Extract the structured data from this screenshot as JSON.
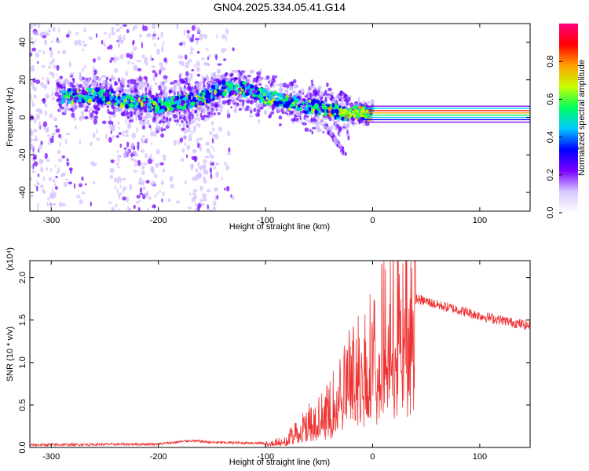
{
  "title": "GN04.2025.334.05.41.G14",
  "chart_data": [
    {
      "type": "heatmap",
      "xlabel": "Height of straight line (km)",
      "ylabel": "Frequency (Hz)",
      "xlim": [
        -320,
        147
      ],
      "ylim": [
        -50,
        50
      ],
      "xticks": [
        -300,
        -200,
        -100,
        0,
        100
      ],
      "yticks": [
        -40,
        -20,
        0,
        20,
        40
      ],
      "grid": false,
      "colorbar": {
        "label": "Normalized spectral amplitude",
        "range": [
          0,
          1
        ],
        "ticks": [
          "0.0",
          "0.2",
          "0.4",
          "0.6",
          "0.8"
        ],
        "colors": [
          "#ffffff",
          "#d8c8ff",
          "#7a00ff",
          "#0000ff",
          "#00c8ff",
          "#00ff60",
          "#c8ff00",
          "#ffa000",
          "#ff0000",
          "#ff0080"
        ]
      },
      "ridge": {
        "x": [
          -290,
          -260,
          -230,
          -200,
          -180,
          -160,
          -140,
          -120,
          -100,
          -80,
          -60,
          -40,
          -25,
          -15,
          -5,
          0,
          20,
          60,
          100,
          147
        ],
        "y": [
          11,
          12,
          9,
          6,
          8,
          10,
          16,
          15,
          11,
          8,
          6,
          4,
          2,
          3,
          2,
          2,
          2,
          2,
          2,
          2
        ]
      }
    },
    {
      "type": "line",
      "xlabel": "Height of straight line (km)",
      "ylabel": "SNR (10 * v/v)",
      "y_multiplier": "(x10⁴)",
      "xlim": [
        -320,
        147
      ],
      "ylim": [
        0,
        2.2
      ],
      "xticks": [
        -300,
        -200,
        -100,
        0,
        100
      ],
      "yticks": [
        "0.0",
        "0.5",
        "1.0",
        "1.5",
        "2.0"
      ],
      "color": "#ee3333",
      "grid": false,
      "envelope": {
        "x": [
          -320,
          -200,
          -170,
          -150,
          -100,
          -80,
          -70,
          -60,
          -50,
          -40,
          -30,
          -20,
          -10,
          0,
          10,
          20,
          30,
          40,
          50,
          60,
          80,
          100,
          120,
          147
        ],
        "y": [
          0.03,
          0.04,
          0.08,
          0.06,
          0.05,
          0.1,
          0.25,
          0.35,
          0.4,
          0.5,
          0.75,
          0.95,
          1.1,
          1.25,
          1.45,
          1.65,
          1.8,
          1.75,
          1.72,
          1.68,
          1.62,
          1.55,
          1.5,
          1.43
        ]
      }
    }
  ]
}
